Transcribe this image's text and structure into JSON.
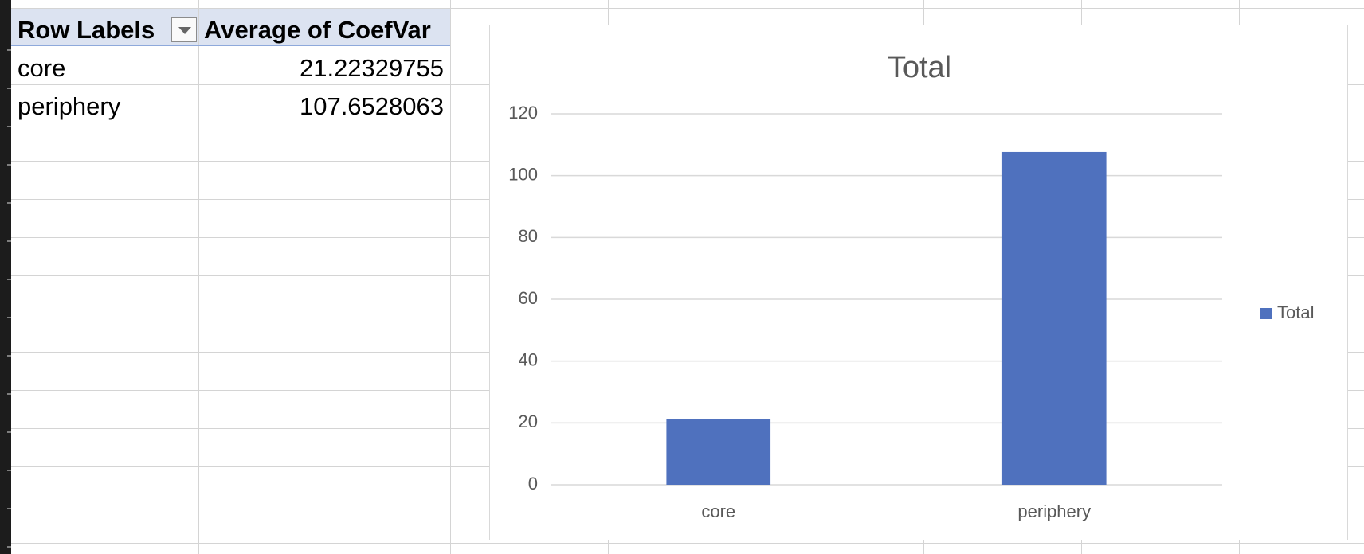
{
  "pivot": {
    "headers": {
      "row_labels": "Row Labels",
      "value_col": "Average of CoefVar"
    },
    "rows": [
      {
        "label": "core",
        "value": "21.22329755"
      },
      {
        "label": "periphery",
        "value": "107.6528063"
      }
    ]
  },
  "chart_data": {
    "type": "bar",
    "title": "Total",
    "categories": [
      "core",
      "periphery"
    ],
    "series": [
      {
        "name": "Total",
        "values": [
          21.22329755,
          107.6528063
        ],
        "color": "#4f71be"
      }
    ],
    "ylim": [
      0,
      120
    ],
    "yticks": [
      0,
      20,
      40,
      60,
      80,
      100,
      120
    ],
    "grid": true,
    "legend_position": "right",
    "xlabel": "",
    "ylabel": ""
  },
  "colors": {
    "bar": "#4f71be",
    "pivot_header": "#dce3f1",
    "gridline": "#d4d4d4"
  }
}
